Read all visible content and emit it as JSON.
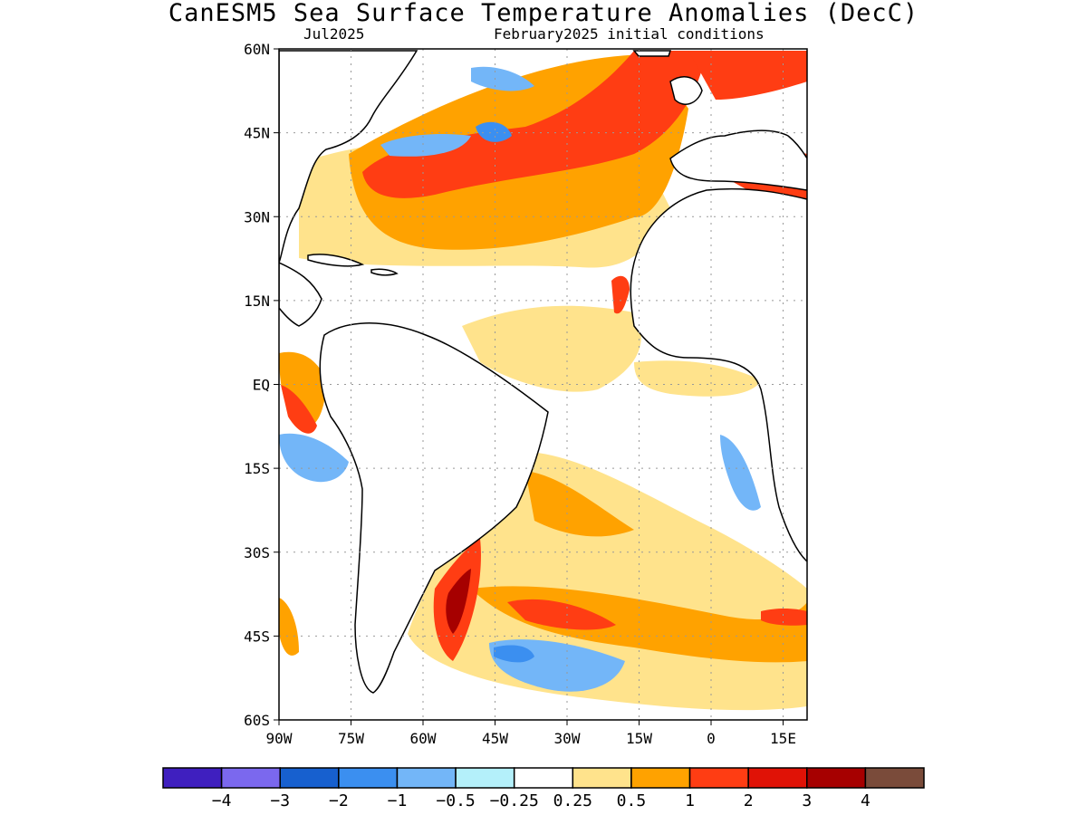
{
  "title": "CanESM5 Sea Surface Temperature Anomalies (DecC)",
  "subtitle_left": "Jul2025",
  "subtitle_right": "February2025 initial conditions",
  "map": {
    "lon_range": [
      -90,
      20
    ],
    "lat_range": [
      -60,
      60
    ],
    "lat_ticks": [
      {
        "value": 60,
        "label": "60N"
      },
      {
        "value": 45,
        "label": "45N"
      },
      {
        "value": 30,
        "label": "30N"
      },
      {
        "value": 15,
        "label": "15N"
      },
      {
        "value": 0,
        "label": "EQ"
      },
      {
        "value": -15,
        "label": "15S"
      },
      {
        "value": -30,
        "label": "30S"
      },
      {
        "value": -45,
        "label": "45S"
      },
      {
        "value": -60,
        "label": "60S"
      }
    ],
    "lon_ticks": [
      {
        "value": -90,
        "label": "90W"
      },
      {
        "value": -75,
        "label": "75W"
      },
      {
        "value": -60,
        "label": "60W"
      },
      {
        "value": -45,
        "label": "45W"
      },
      {
        "value": -30,
        "label": "30W"
      },
      {
        "value": -15,
        "label": "15W"
      },
      {
        "value": 0,
        "label": "0"
      },
      {
        "value": 15,
        "label": "15E"
      }
    ],
    "grid": true
  },
  "colorbar": {
    "colors": [
      "#3f1fbf",
      "#7b68ee",
      "#1760cf",
      "#3b8ff0",
      "#73b6f8",
      "#b4f0fa",
      "#ffffff",
      "#ffe38c",
      "#ffa200",
      "#ff3d13",
      "#e01206",
      "#a60000",
      "#7a4b3a"
    ],
    "labels": [
      "−4",
      "−3",
      "−2",
      "−1",
      "−0.5",
      "−0.25",
      "0.25",
      "0.5",
      "1",
      "2",
      "3",
      "4"
    ]
  },
  "anomaly_regions": [
    {
      "name": "North Atlantic warm band",
      "color": "#ff3d13"
    },
    {
      "name": "Subtropical North Atlantic warm",
      "color": "#ffa200"
    },
    {
      "name": "Northwest Atlantic cool pocket",
      "color": "#3b8ff0"
    },
    {
      "name": "South Atlantic warm",
      "color": "#ffa200"
    },
    {
      "name": "Southwest Atlantic cool",
      "color": "#73b6f8"
    },
    {
      "name": "Brazil-Malvinas warm core",
      "color": "#a60000"
    }
  ]
}
